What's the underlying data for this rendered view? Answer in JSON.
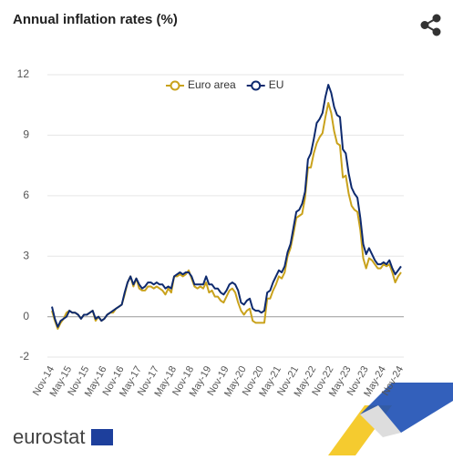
{
  "chart_data": {
    "type": "line",
    "title": "Annual inflation rates (%)",
    "logo": "eurostat",
    "categories": [
      "Nov-14",
      null,
      null,
      null,
      null,
      null,
      "May-15",
      null,
      null,
      null,
      null,
      null,
      "Nov-15",
      null,
      null,
      null,
      null,
      null,
      "May-16",
      null,
      null,
      null,
      null,
      null,
      "Nov-16",
      null,
      null,
      null,
      null,
      null,
      "May-17",
      null,
      null,
      null,
      null,
      null,
      "Nov-17",
      null,
      null,
      null,
      null,
      null,
      "May-18",
      null,
      null,
      null,
      null,
      null,
      "Nov-18",
      null,
      null,
      null,
      null,
      null,
      "May-19",
      null,
      null,
      null,
      null,
      null,
      "Nov-19",
      null,
      null,
      null,
      null,
      null,
      "May-20",
      null,
      null,
      null,
      null,
      null,
      "Nov-20",
      null,
      null,
      null,
      null,
      null,
      "May-21",
      null,
      null,
      null,
      null,
      null,
      "Nov-21",
      null,
      null,
      null,
      null,
      null,
      "May-22",
      null,
      null,
      null,
      null,
      null,
      "Nov-22",
      null,
      null,
      null,
      null,
      null,
      "May-23",
      null,
      null,
      null,
      null,
      null,
      "Nov-23",
      null,
      null,
      null,
      null,
      null,
      "May-24",
      null,
      null,
      null,
      null,
      null,
      "Nov-24"
    ],
    "series": [
      {
        "name": "Euro area",
        "color": "#c9a21c",
        "values": [
          0.3,
          -0.2,
          -0.6,
          -0.3,
          -0.1,
          0.2,
          0.3,
          0.2,
          0.2,
          0.1,
          -0.1,
          0.1,
          0.1,
          0.2,
          0.3,
          -0.2,
          0.0,
          -0.2,
          -0.1,
          0.1,
          0.2,
          0.2,
          0.4,
          0.5,
          0.6,
          1.1,
          1.7,
          2.0,
          1.5,
          1.9,
          1.4,
          1.3,
          1.3,
          1.5,
          1.5,
          1.4,
          1.5,
          1.4,
          1.3,
          1.1,
          1.4,
          1.2,
          2.0,
          2.0,
          2.1,
          2.0,
          2.1,
          2.3,
          1.9,
          1.5,
          1.4,
          1.5,
          1.4,
          1.7,
          1.2,
          1.3,
          1.0,
          1.0,
          0.8,
          0.7,
          1.0,
          1.3,
          1.4,
          1.2,
          0.7,
          0.3,
          0.1,
          0.3,
          0.4,
          -0.2,
          -0.3,
          -0.3,
          -0.3,
          -0.3,
          0.9,
          0.9,
          1.3,
          1.6,
          2.0,
          1.9,
          2.2,
          3.0,
          3.4,
          4.1,
          4.9,
          5.0,
          5.1,
          5.9,
          7.4,
          7.4,
          8.1,
          8.6,
          8.9,
          9.1,
          9.9,
          10.6,
          10.1,
          9.2,
          8.6,
          8.5,
          6.9,
          7.0,
          6.1,
          5.5,
          5.3,
          5.2,
          4.3,
          2.9,
          2.4,
          2.9,
          2.8,
          2.6,
          2.4,
          2.4,
          2.6,
          2.5,
          2.6,
          2.2,
          1.7,
          2.0,
          2.2
        ]
      },
      {
        "name": "EU",
        "color": "#0e2a6e",
        "values": [
          0.5,
          -0.1,
          -0.5,
          -0.2,
          -0.1,
          0.0,
          0.3,
          0.2,
          0.2,
          0.1,
          -0.1,
          0.1,
          0.1,
          0.2,
          0.3,
          -0.1,
          0.0,
          -0.2,
          -0.1,
          0.1,
          0.2,
          0.3,
          0.4,
          0.5,
          0.6,
          1.2,
          1.7,
          2.0,
          1.6,
          1.9,
          1.6,
          1.4,
          1.5,
          1.7,
          1.7,
          1.6,
          1.7,
          1.6,
          1.6,
          1.4,
          1.5,
          1.4,
          2.0,
          2.1,
          2.2,
          2.1,
          2.2,
          2.2,
          2.0,
          1.6,
          1.6,
          1.6,
          1.6,
          2.0,
          1.6,
          1.6,
          1.4,
          1.4,
          1.2,
          1.1,
          1.3,
          1.6,
          1.7,
          1.6,
          1.3,
          0.7,
          0.6,
          0.8,
          0.9,
          0.4,
          0.3,
          0.3,
          0.2,
          0.3,
          1.2,
          1.3,
          1.7,
          2.0,
          2.3,
          2.2,
          2.5,
          3.2,
          3.6,
          4.4,
          5.2,
          5.3,
          5.6,
          6.2,
          7.8,
          8.1,
          8.8,
          9.6,
          9.8,
          10.1,
          10.9,
          11.5,
          11.1,
          10.4,
          10.0,
          9.9,
          8.3,
          8.1,
          7.1,
          6.4,
          6.1,
          5.9,
          4.9,
          3.6,
          3.1,
          3.4,
          3.1,
          2.8,
          2.6,
          2.6,
          2.7,
          2.6,
          2.8,
          2.4,
          2.1,
          2.3,
          2.5
        ]
      }
    ],
    "ylim": [
      -2,
      12
    ],
    "yticks": [
      -2,
      0,
      3,
      6,
      9,
      12
    ],
    "grid": true
  }
}
